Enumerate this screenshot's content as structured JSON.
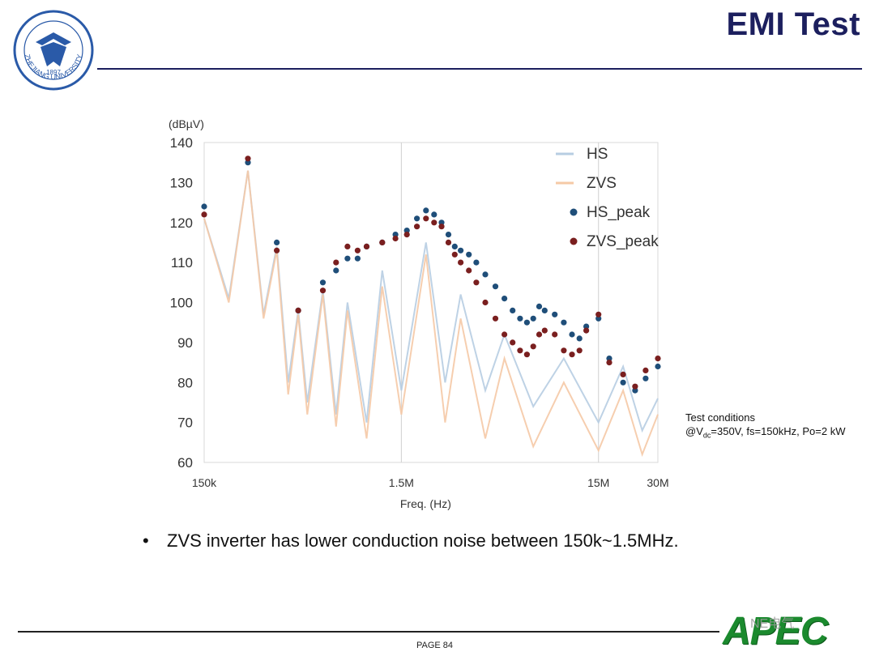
{
  "slide": {
    "title": "EMI Test",
    "logo": {
      "icon": "zhejiang-university-logo-icon",
      "ring_text": "ZHEJIANG UNIVERSITY",
      "year": "1897"
    },
    "conditions_prefix": "Test conditions",
    "conditions_line2_pre": "@V",
    "conditions_line2_sub": "dc",
    "conditions_line2_post": "=350V, fs=150kHz, Po=2 kW",
    "bullet_text": "ZVS inverter has lower conduction noise between 150k~1.5MHz.",
    "page_label": "PAGE 84",
    "footer_logo_text": "APEC",
    "watermark_text": "NE电气",
    "colors": {
      "title": "#1c1f5e",
      "hs": "#1f4e79",
      "zvs": "#7a1f1f",
      "hs_line": "#b7cde2",
      "zvs_line": "#f5c9a6",
      "apec": "#1b8a2e"
    }
  },
  "chart_data": {
    "type": "line",
    "title": "",
    "ylabel": "(dBµV)",
    "xlabel": "Freq. (Hz)",
    "xscale": "log",
    "xlim": [
      150000,
      30000000
    ],
    "ylim": [
      60,
      140
    ],
    "yticks": [
      60,
      70,
      80,
      90,
      100,
      110,
      120,
      130,
      140
    ],
    "xticks": [
      {
        "value": 150000,
        "label": "150k"
      },
      {
        "value": 1500000,
        "label": "1.5M"
      },
      {
        "value": 15000000,
        "label": "15M"
      },
      {
        "value": 30000000,
        "label": "30M"
      }
    ],
    "grid": "major x at 1.5M and 15M",
    "legend_position": "top-right",
    "series": [
      {
        "name": "HS",
        "kind": "line",
        "x": [
          150000,
          200000,
          250000,
          300000,
          350000,
          400000,
          450000,
          500000,
          600000,
          700000,
          800000,
          1000000,
          1200000,
          1500000,
          2000000,
          2500000,
          3000000,
          4000000,
          5000000,
          7000000,
          10000000,
          15000000,
          20000000,
          25000000,
          30000000
        ],
        "y": [
          121,
          101,
          133,
          97,
          114,
          80,
          98,
          75,
          103,
          72,
          100,
          70,
          108,
          78,
          115,
          80,
          102,
          78,
          92,
          74,
          86,
          70,
          84,
          68,
          76
        ]
      },
      {
        "name": "ZVS",
        "kind": "line",
        "x": [
          150000,
          200000,
          250000,
          300000,
          350000,
          400000,
          450000,
          500000,
          600000,
          700000,
          800000,
          1000000,
          1200000,
          1500000,
          2000000,
          2500000,
          3000000,
          4000000,
          5000000,
          7000000,
          10000000,
          15000000,
          20000000,
          25000000,
          30000000
        ],
        "y": [
          121,
          100,
          133,
          96,
          113,
          77,
          97,
          72,
          102,
          69,
          98,
          66,
          104,
          72,
          112,
          70,
          96,
          66,
          86,
          64,
          80,
          63,
          78,
          62,
          72
        ]
      },
      {
        "name": "HS_peak",
        "kind": "scatter",
        "x": [
          150000,
          250000,
          350000,
          450000,
          600000,
          700000,
          800000,
          900000,
          1000000,
          1200000,
          1400000,
          1600000,
          1800000,
          2000000,
          2200000,
          2400000,
          2600000,
          2800000,
          3000000,
          3300000,
          3600000,
          4000000,
          4500000,
          5000000,
          5500000,
          6000000,
          6500000,
          7000000,
          7500000,
          8000000,
          9000000,
          10000000,
          11000000,
          12000000,
          13000000,
          15000000,
          17000000,
          20000000,
          23000000,
          26000000,
          30000000
        ],
        "y": [
          124,
          135,
          115,
          98,
          105,
          108,
          111,
          111,
          114,
          115,
          117,
          118,
          121,
          123,
          122,
          120,
          117,
          114,
          113,
          112,
          110,
          107,
          104,
          101,
          98,
          96,
          95,
          96,
          99,
          98,
          97,
          95,
          92,
          91,
          94,
          96,
          86,
          80,
          78,
          81,
          84
        ]
      },
      {
        "name": "ZVS_peak",
        "kind": "scatter",
        "x": [
          150000,
          250000,
          350000,
          450000,
          600000,
          700000,
          800000,
          900000,
          1000000,
          1200000,
          1400000,
          1600000,
          1800000,
          2000000,
          2200000,
          2400000,
          2600000,
          2800000,
          3000000,
          3300000,
          3600000,
          4000000,
          4500000,
          5000000,
          5500000,
          6000000,
          6500000,
          7000000,
          7500000,
          8000000,
          9000000,
          10000000,
          11000000,
          12000000,
          13000000,
          15000000,
          17000000,
          20000000,
          23000000,
          26000000,
          30000000
        ],
        "y": [
          122,
          136,
          113,
          98,
          103,
          110,
          114,
          113,
          114,
          115,
          116,
          117,
          119,
          121,
          120,
          119,
          115,
          112,
          110,
          108,
          105,
          100,
          96,
          92,
          90,
          88,
          87,
          89,
          92,
          93,
          92,
          88,
          87,
          88,
          93,
          97,
          85,
          82,
          79,
          83,
          86
        ]
      }
    ]
  }
}
